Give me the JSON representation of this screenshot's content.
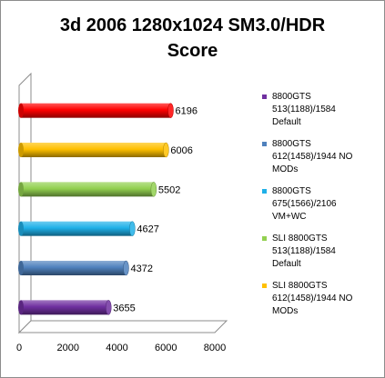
{
  "chart_data": {
    "type": "bar",
    "orientation": "horizontal",
    "title": [
      "3d 2006  1280x1024 SM3.0/HDR",
      "Score"
    ],
    "xlim": [
      0,
      8000
    ],
    "xticks": [
      "0",
      "2000",
      "4000",
      "6000",
      "8000"
    ],
    "grid": false,
    "legend_position": "right",
    "series": [
      {
        "name": [
          "8800GTS",
          "513(1188)/1584",
          "Default"
        ],
        "value": 3655,
        "label": "3655",
        "color": "#7030a0"
      },
      {
        "name": [
          "8800GTS",
          "612(1458)/1944 NO",
          "MODs"
        ],
        "value": 4372,
        "label": "4372",
        "color": "#4f81bd"
      },
      {
        "name": [
          "8800GTS",
          "675(1566)/2106",
          "VM+WC"
        ],
        "value": 4627,
        "label": "4627",
        "color": "#1fb0e8"
      },
      {
        "name": [
          "SLI 8800GTS",
          "513(1188)/1584",
          "Default"
        ],
        "value": 5502,
        "label": "5502",
        "color": "#92d050"
      },
      {
        "name": [
          "SLI 8800GTS",
          "612(1458)/1944 NO",
          "MODs"
        ],
        "value": 6006,
        "label": "6006",
        "color": "#ffc000"
      },
      {
        "name": [],
        "value": 6196,
        "label": "6196",
        "color": "#ff0000"
      }
    ]
  }
}
